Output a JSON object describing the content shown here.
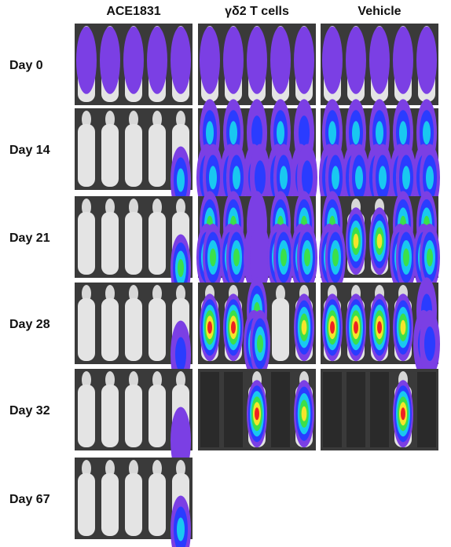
{
  "columns": [
    "ACE1831",
    "γδ2 T cells",
    "Vehicle"
  ],
  "rows": [
    "Day 0",
    "Day 14",
    "Day 21",
    "Day 28",
    "Day 32",
    "Day 67"
  ]
}
